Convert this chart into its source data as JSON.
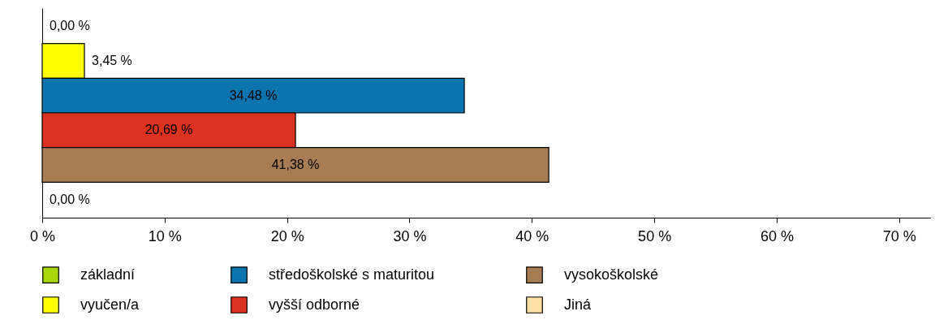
{
  "chart_data": {
    "type": "bar",
    "orientation": "horizontal",
    "stacked": true,
    "categories": [
      null,
      null,
      null,
      null,
      null,
      null
    ],
    "series": [
      {
        "name": "základní",
        "color": "#a8d80a",
        "values": [
          0,
          null,
          null,
          null,
          null,
          null
        ],
        "value_labels": [
          "0,00 %",
          null,
          null,
          null,
          null,
          null
        ]
      },
      {
        "name": "vyučen/a",
        "color": "#ffff00",
        "values": [
          null,
          3.45,
          null,
          null,
          null,
          null
        ],
        "value_labels": [
          null,
          "3,45 %",
          null,
          null,
          null,
          null
        ]
      },
      {
        "name": "středoškolské s maturitou",
        "color": "#0b74ae",
        "values": [
          null,
          null,
          34.48,
          null,
          null,
          null
        ],
        "value_labels": [
          null,
          null,
          "34,48 %",
          null,
          null,
          null
        ]
      },
      {
        "name": "vyšší odborné",
        "color": "#dc3220",
        "values": [
          null,
          null,
          null,
          20.69,
          null,
          null
        ],
        "value_labels": [
          null,
          null,
          null,
          "20,69 %",
          null,
          null
        ]
      },
      {
        "name": "vysokoškolské",
        "color": "#a67d52",
        "values": [
          null,
          null,
          null,
          null,
          41.38,
          null
        ],
        "value_labels": [
          null,
          null,
          null,
          null,
          "41,38 %",
          null
        ]
      },
      {
        "name": "Jiná",
        "color": "#ffe1a8",
        "values": [
          null,
          null,
          null,
          null,
          null,
          0
        ],
        "value_labels": [
          null,
          null,
          null,
          null,
          null,
          "0,00 %"
        ]
      }
    ],
    "xlim": [
      0,
      72.6
    ],
    "xticks": [
      {
        "value": 0,
        "label": "0 %"
      },
      {
        "value": 10,
        "label": "10 %"
      },
      {
        "value": 20,
        "label": "20 %"
      },
      {
        "value": 30,
        "label": "30 %"
      },
      {
        "value": 40,
        "label": "40 %"
      },
      {
        "value": 50,
        "label": "50 %"
      },
      {
        "value": 60,
        "label": "60 %"
      },
      {
        "value": 70,
        "label": "70 %"
      }
    ],
    "grid": false,
    "legend": "bottom"
  }
}
